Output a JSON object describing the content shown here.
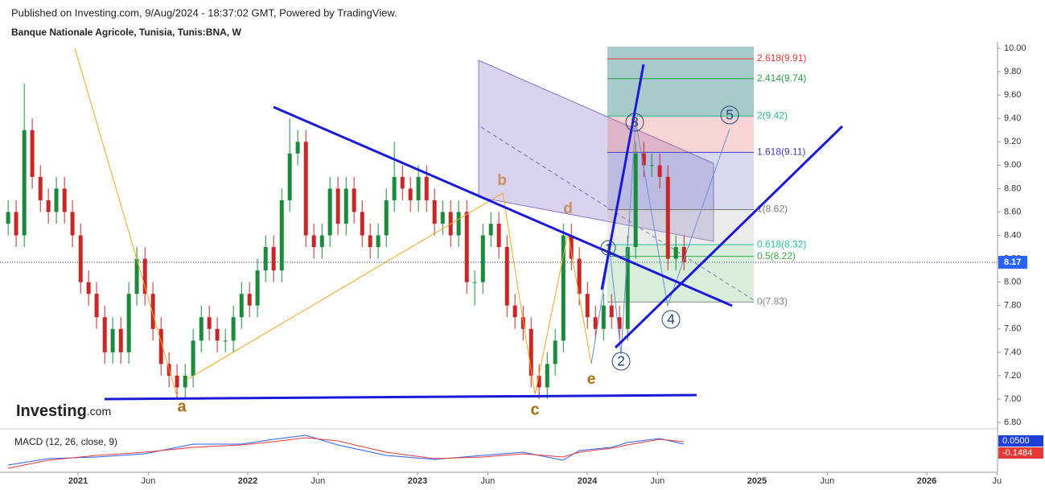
{
  "chart_data": {
    "type": "candlestick",
    "header": "Published on Investing.com, 9/Aug/2024 - 18:37:02 GMT, Powered by TradingView.",
    "title": "Banque Nationale Agricole, Tunisia, Tunis:BNA, W",
    "logo": {
      "name": "Investing",
      "suffix": ".com"
    },
    "xlim": [
      2020.54,
      2026.417
    ],
    "xticks": [
      {
        "value": 2021,
        "label": "2021"
      },
      {
        "value": 2021.414,
        "label": "Jun"
      },
      {
        "value": 2022,
        "label": "2022"
      },
      {
        "value": 2022.414,
        "label": "Jun"
      },
      {
        "value": 2023,
        "label": "2023"
      },
      {
        "value": 2023.414,
        "label": "Jun"
      },
      {
        "value": 2024,
        "label": "2024"
      },
      {
        "value": 2024.414,
        "label": "Jun"
      },
      {
        "value": 2025,
        "label": "2025"
      },
      {
        "value": 2025.414,
        "label": "Jun"
      },
      {
        "value": 2026,
        "label": "2026"
      },
      {
        "value": 2026.414,
        "label": "Ju"
      }
    ],
    "ylim": [
      6.766,
      10.055
    ],
    "yticks": [
      {
        "value": 6.8,
        "label": "6.80"
      },
      {
        "value": 7,
        "label": "7.00"
      },
      {
        "value": 7.2,
        "label": "7.20"
      },
      {
        "value": 7.4,
        "label": "7.40"
      },
      {
        "value": 7.6,
        "label": "7.60"
      },
      {
        "value": 7.8,
        "label": "7.80"
      },
      {
        "value": 8,
        "label": "8.00"
      },
      {
        "value": 8.2,
        "label": "8.20"
      },
      {
        "value": 8.4,
        "label": "8.40"
      },
      {
        "value": 8.6,
        "label": "8.60"
      },
      {
        "value": 8.8,
        "label": "8.80"
      },
      {
        "value": 9,
        "label": "9.00"
      },
      {
        "value": 9.2,
        "label": "9.20"
      },
      {
        "value": 9.4,
        "label": "9.40"
      },
      {
        "value": 9.6,
        "label": "9.60"
      },
      {
        "value": 9.8,
        "label": "9.80"
      },
      {
        "value": 10,
        "label": "10.00"
      }
    ],
    "up_color": "#1b8a3c",
    "down_color": "#c62828",
    "x": [
      2020.588,
      2020.635,
      2020.683,
      2020.73,
      2020.778,
      2020.825,
      2020.872,
      2020.92,
      2020.967,
      2021.015,
      2021.062,
      2021.109,
      2021.157,
      2021.204,
      2021.252,
      2021.299,
      2021.346,
      2021.394,
      2021.441,
      2021.489,
      2021.536,
      2021.583,
      2021.631,
      2021.678,
      2021.726,
      2021.773,
      2021.82,
      2021.868,
      2021.915,
      2021.963,
      2022.01,
      2022.057,
      2022.105,
      2022.152,
      2022.2,
      2022.247,
      2022.294,
      2022.342,
      2022.389,
      2022.437,
      2022.484,
      2022.531,
      2022.579,
      2022.626,
      2022.674,
      2022.721,
      2022.768,
      2022.816,
      2022.863,
      2022.911,
      2022.958,
      2023.005,
      2023.053,
      2023.1,
      2023.148,
      2023.195,
      2023.242,
      2023.29,
      2023.337,
      2023.385,
      2023.432,
      2023.479,
      2023.527,
      2023.574,
      2023.622,
      2023.669,
      2023.716,
      2023.764,
      2023.811,
      2023.859,
      2023.906,
      2023.953,
      2024.001,
      2024.048,
      2024.096,
      2024.143,
      2024.19,
      2024.238,
      2024.285,
      2024.333,
      2024.38,
      2024.427,
      2024.475,
      2024.522,
      2024.57
    ],
    "open": [
      8.5,
      8.6,
      8.4,
      9.3,
      8.9,
      8.7,
      8.6,
      8.8,
      8.6,
      8.4,
      8.0,
      7.9,
      7.7,
      7.4,
      7.6,
      7.4,
      7.9,
      8.2,
      7.9,
      7.6,
      7.3,
      7.2,
      7.1,
      7.2,
      7.5,
      7.7,
      7.6,
      7.5,
      7.5,
      7.7,
      7.9,
      7.8,
      8.1,
      8.3,
      8.1,
      8.7,
      9.1,
      9.2,
      8.4,
      8.3,
      8.4,
      8.8,
      8.5,
      8.8,
      8.6,
      8.4,
      8.3,
      8.4,
      8.7,
      8.9,
      8.8,
      8.7,
      8.9,
      8.7,
      8.5,
      8.6,
      8.4,
      8.6,
      8.0,
      8.0,
      8.4,
      8.5,
      8.3,
      7.8,
      7.7,
      7.6,
      7.2,
      7.1,
      7.3,
      7.5,
      8.4,
      8.2,
      7.9,
      7.7,
      7.6,
      7.8,
      7.7,
      7.6,
      8.3,
      9.1,
      9.0,
      9.0,
      8.9,
      8.2,
      8.3
    ],
    "high": [
      8.7,
      8.7,
      9.7,
      9.4,
      9.0,
      8.8,
      8.9,
      8.9,
      8.7,
      8.5,
      8.1,
      8.0,
      7.8,
      7.7,
      7.7,
      8.0,
      8.3,
      8.3,
      8.0,
      7.7,
      7.4,
      7.3,
      7.3,
      7.6,
      7.8,
      7.8,
      7.7,
      7.6,
      7.8,
      8.0,
      8.0,
      8.2,
      8.4,
      8.4,
      8.8,
      9.4,
      9.3,
      9.3,
      8.5,
      8.5,
      8.9,
      8.9,
      8.9,
      8.9,
      8.7,
      8.5,
      8.5,
      8.8,
      9.2,
      9.0,
      8.9,
      9.0,
      9.0,
      8.8,
      8.7,
      8.7,
      8.7,
      8.7,
      8.1,
      8.5,
      8.6,
      8.6,
      8.4,
      7.9,
      7.8,
      7.7,
      7.3,
      7.4,
      7.6,
      8.5,
      8.5,
      8.3,
      8.0,
      7.8,
      7.9,
      7.9,
      7.8,
      8.4,
      9.2,
      9.2,
      9.1,
      9.1,
      9.0,
      8.4,
      8.4
    ],
    "low": [
      8.4,
      8.3,
      8.3,
      8.8,
      8.6,
      8.5,
      8.5,
      8.5,
      8.3,
      7.9,
      7.8,
      7.6,
      7.3,
      7.3,
      7.3,
      7.3,
      7.8,
      7.8,
      7.5,
      7.2,
      7.1,
      7.0,
      7.0,
      7.1,
      7.4,
      7.5,
      7.4,
      7.4,
      7.4,
      7.6,
      7.7,
      7.7,
      8.0,
      8.0,
      8.0,
      8.6,
      9.0,
      8.3,
      8.2,
      8.2,
      8.3,
      8.4,
      8.4,
      8.5,
      8.3,
      8.2,
      8.2,
      8.3,
      8.6,
      8.7,
      8.6,
      8.6,
      8.6,
      8.4,
      8.4,
      8.3,
      8.3,
      7.9,
      7.8,
      7.9,
      8.3,
      8.2,
      7.7,
      7.6,
      7.5,
      7.1,
      7.0,
      7.0,
      7.2,
      7.4,
      8.1,
      7.8,
      7.6,
      7.5,
      7.5,
      7.6,
      7.5,
      7.5,
      8.2,
      8.9,
      8.9,
      8.8,
      8.1,
      8.1,
      8.1
    ],
    "close": [
      8.6,
      8.4,
      9.3,
      8.9,
      8.7,
      8.6,
      8.8,
      8.6,
      8.4,
      8.0,
      7.9,
      7.7,
      7.4,
      7.6,
      7.4,
      7.9,
      8.2,
      7.9,
      7.6,
      7.3,
      7.2,
      7.1,
      7.2,
      7.5,
      7.7,
      7.6,
      7.5,
      7.5,
      7.7,
      7.9,
      7.8,
      8.1,
      8.3,
      8.1,
      8.7,
      9.1,
      9.2,
      8.4,
      8.3,
      8.4,
      8.8,
      8.5,
      8.8,
      8.6,
      8.4,
      8.3,
      8.4,
      8.7,
      8.9,
      8.8,
      8.7,
      8.9,
      8.7,
      8.5,
      8.6,
      8.4,
      8.6,
      8.0,
      8.0,
      8.4,
      8.5,
      8.3,
      7.8,
      7.7,
      7.6,
      7.2,
      7.1,
      7.3,
      7.5,
      8.4,
      8.2,
      7.9,
      7.7,
      7.6,
      7.8,
      7.7,
      7.6,
      8.3,
      9.1,
      9.0,
      9.0,
      8.9,
      8.2,
      8.3,
      8.17
    ],
    "last_price": {
      "value": 8.17,
      "label": "8.17",
      "color": "#2962ff"
    },
    "fib_levels": [
      {
        "label": "2.618(9.91)",
        "value": 9.91,
        "color": "#e53935"
      },
      {
        "label": "2.414(9.74)",
        "value": 9.74,
        "color": "#2e9e4a"
      },
      {
        "label": "2(9.42)",
        "value": 9.42,
        "color": "#2eb88a"
      },
      {
        "label": "1.618(9.11)",
        "value": 9.11,
        "color": "#3a3fc0"
      },
      {
        "label": "1(8.62)",
        "value": 8.62,
        "color": "#777777"
      },
      {
        "label": "0.618(8.32)",
        "value": 8.32,
        "color": "#26bfa0"
      },
      {
        "label": "0.5(8.22)",
        "value": 8.22,
        "color": "#3aa845"
      },
      {
        "label": "0(7.83)",
        "value": 7.83,
        "color": "#888888"
      }
    ],
    "waves": [
      "a",
      "b",
      "c",
      "d",
      "e"
    ],
    "wave_counts": [
      "1",
      "2",
      "3",
      "4",
      "5"
    ],
    "macd": {
      "title": "MACD (12, 26, close, 9)",
      "labels": [
        {
          "label": "0.0500",
          "color": "#1e40d8"
        },
        {
          "label": "-0.1484",
          "color": "#e53935"
        }
      ]
    }
  }
}
